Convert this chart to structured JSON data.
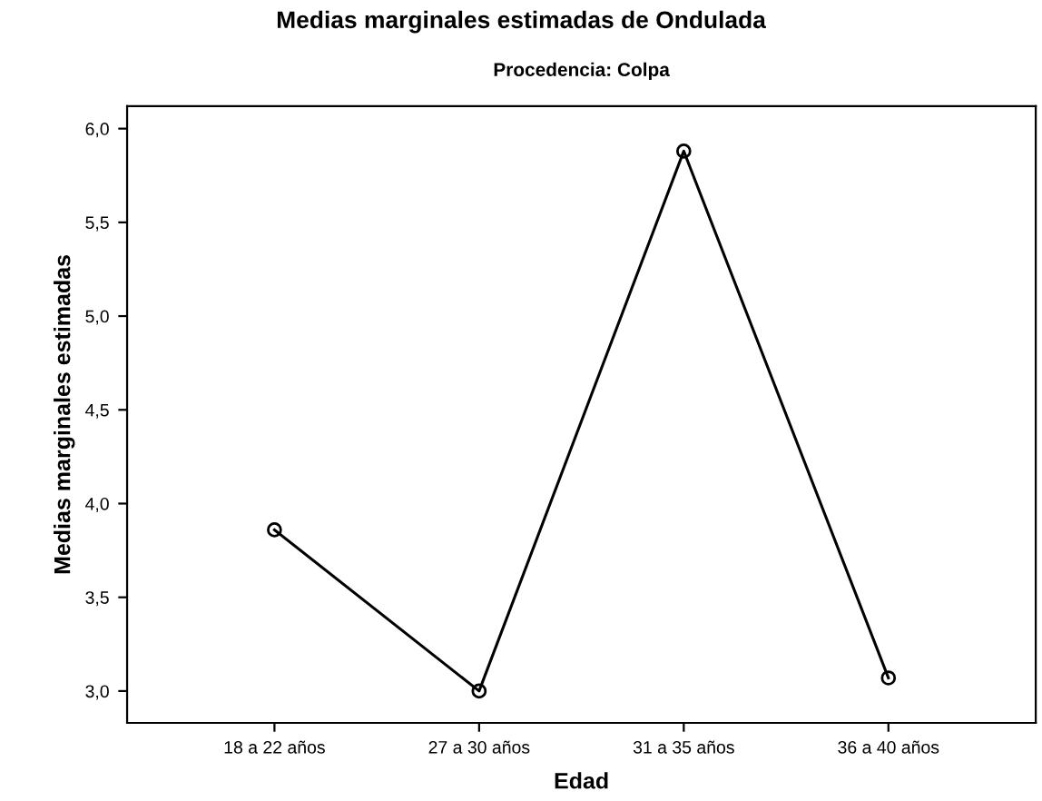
{
  "chart_data": {
    "type": "line",
    "title": "Medias marginales estimadas de Ondulada",
    "subtitle": "Procedencia: Colpa",
    "xlabel": "Edad",
    "ylabel": "Medias marginales estimadas",
    "categories": [
      "18 a 22 años",
      "27 a 30 años",
      "31 a 35 años",
      "36 a 40 años"
    ],
    "series": [
      {
        "color": "#000000",
        "values": [
          3.86,
          3.0,
          5.88,
          3.07
        ]
      }
    ],
    "ylim": [
      2.83,
      6.12
    ],
    "yticks": [
      {
        "value": 3.0,
        "label": "3,0"
      },
      {
        "value": 3.5,
        "label": "3,5"
      },
      {
        "value": 4.0,
        "label": "4,0"
      },
      {
        "value": 4.5,
        "label": "4,5"
      },
      {
        "value": 5.0,
        "label": "5,0"
      },
      {
        "value": 5.5,
        "label": "5,5"
      },
      {
        "value": 6.0,
        "label": "6,0"
      }
    ],
    "grid": false,
    "legend": false,
    "marker": "circle",
    "line_style": "solid"
  }
}
